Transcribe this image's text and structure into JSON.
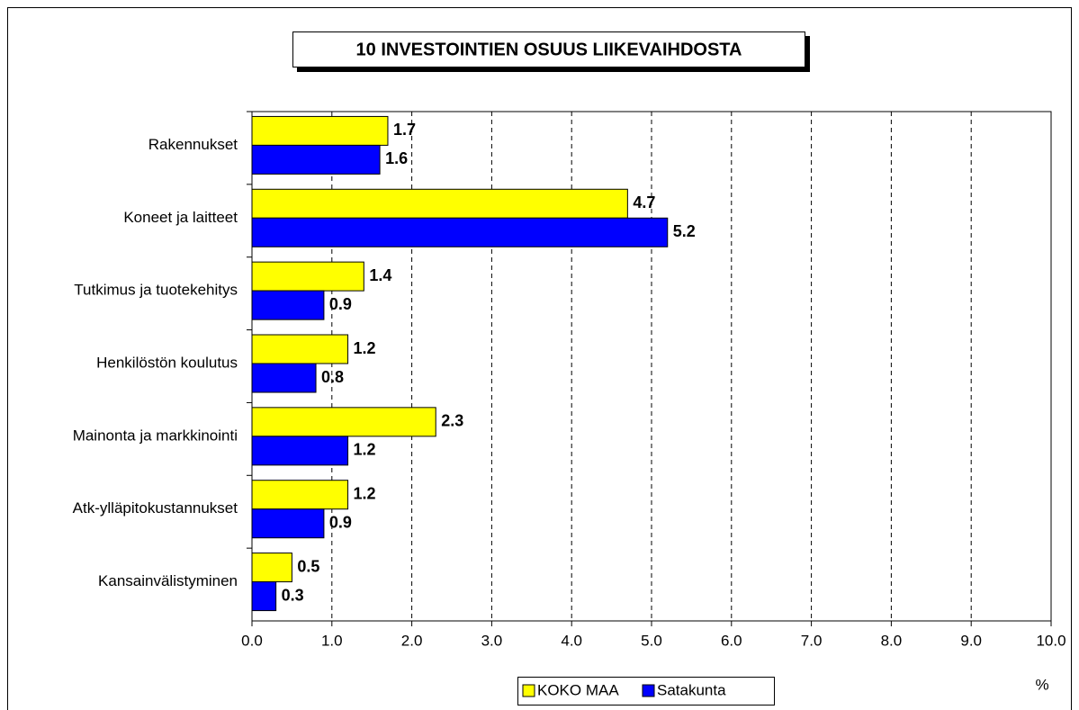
{
  "chart_data": {
    "type": "bar",
    "orientation": "horizontal",
    "title": "10 INVESTOINTIEN OSUUS LIIKEVAIHDOSTA",
    "categories": [
      "Rakennukset",
      "Koneet ja laitteet",
      "Tutkimus ja tuotekehitys",
      "Henkilöstön koulutus",
      "Mainonta ja markkinointi",
      "Atk-ylläpitokustannukset",
      "Kansainvälistyminen"
    ],
    "series": [
      {
        "name": "KOKO MAA",
        "color": "#ffff00",
        "values": [
          1.7,
          4.7,
          1.4,
          1.2,
          2.3,
          1.2,
          0.5
        ]
      },
      {
        "name": "Satakunta",
        "color": "#0000ff",
        "values": [
          1.6,
          5.2,
          0.9,
          0.8,
          1.2,
          0.9,
          0.3
        ]
      }
    ],
    "x_label": "%",
    "xlim": [
      0,
      10
    ],
    "xticks": [
      {
        "value": 0,
        "label": "0.0"
      },
      {
        "value": 1,
        "label": "1.0"
      },
      {
        "value": 2,
        "label": "2.0"
      },
      {
        "value": 3,
        "label": "3.0"
      },
      {
        "value": 4,
        "label": "4.0"
      },
      {
        "value": 5,
        "label": "5.0"
      },
      {
        "value": 6,
        "label": "6.0"
      },
      {
        "value": 7,
        "label": "7.0"
      },
      {
        "value": 8,
        "label": "8.0"
      },
      {
        "value": 9,
        "label": "9.0"
      },
      {
        "value": 10,
        "label": "10.0"
      }
    ],
    "grid": true,
    "legend": "bottom"
  }
}
